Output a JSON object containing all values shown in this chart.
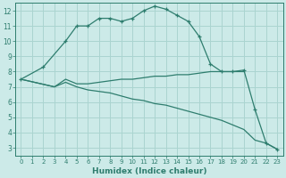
{
  "line1_x": [
    0,
    2,
    4,
    5,
    6,
    7,
    8,
    9,
    10,
    11,
    12,
    13,
    14,
    15,
    16,
    17,
    18,
    19,
    20,
    21,
    22,
    23
  ],
  "line1_y": [
    7.5,
    8.3,
    10.0,
    11.0,
    11.0,
    11.5,
    11.5,
    11.3,
    11.5,
    12.0,
    12.3,
    12.1,
    11.7,
    11.3,
    10.3,
    8.5,
    8.0,
    8.0,
    8.1,
    5.5,
    3.3,
    2.9
  ],
  "line2_x": [
    0,
    3,
    4,
    5,
    6,
    7,
    8,
    9,
    10,
    11,
    12,
    13,
    14,
    15,
    16,
    17,
    18,
    19,
    20
  ],
  "line2_y": [
    7.5,
    7.0,
    7.5,
    7.2,
    7.2,
    7.3,
    7.4,
    7.5,
    7.5,
    7.6,
    7.7,
    7.7,
    7.8,
    7.8,
    7.9,
    8.0,
    8.0,
    8.0,
    8.0
  ],
  "line3_x": [
    0,
    3,
    4,
    5,
    6,
    7,
    8,
    9,
    10,
    11,
    12,
    13,
    14,
    15,
    16,
    17,
    18,
    19,
    20,
    21,
    22,
    23
  ],
  "line3_y": [
    7.5,
    7.0,
    7.3,
    7.0,
    6.8,
    6.7,
    6.6,
    6.4,
    6.2,
    6.1,
    5.9,
    5.8,
    5.6,
    5.4,
    5.2,
    5.0,
    4.8,
    4.5,
    4.2,
    3.5,
    3.3,
    2.9
  ],
  "color": "#2e7d6e",
  "bg_color": "#cceae8",
  "grid_color": "#aad4d0",
  "xlabel": "Humidex (Indice chaleur)",
  "xlim": [
    -0.5,
    23.5
  ],
  "ylim": [
    2.5,
    12.5
  ],
  "xticks": [
    0,
    1,
    2,
    3,
    4,
    5,
    6,
    7,
    8,
    9,
    10,
    11,
    12,
    13,
    14,
    15,
    16,
    17,
    18,
    19,
    20,
    21,
    22,
    23
  ],
  "yticks": [
    3,
    4,
    5,
    6,
    7,
    8,
    9,
    10,
    11,
    12
  ],
  "marker_size": 3.5
}
